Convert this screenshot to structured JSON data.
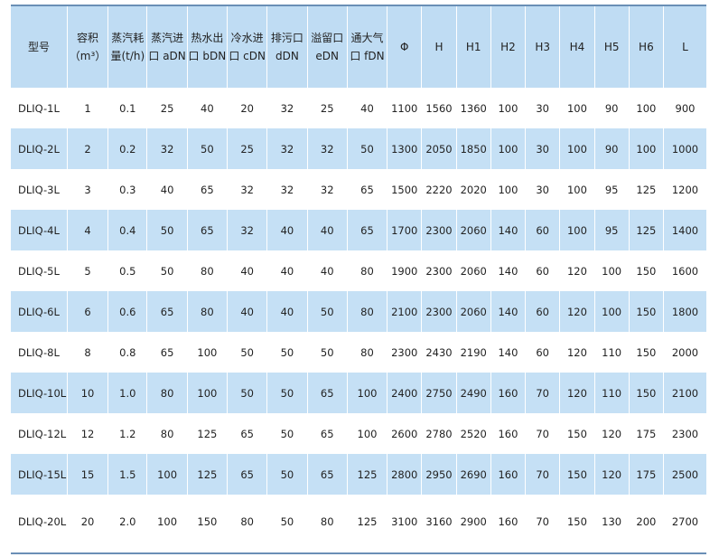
{
  "headers": [
    [
      "型号",
      ""
    ],
    [
      "容积",
      "（m³）"
    ],
    [
      "蒸汽耗",
      "量(t/h)"
    ],
    [
      "蒸汽进",
      "口 aDN"
    ],
    [
      "热水出",
      "口 bDN"
    ],
    [
      "冷水进",
      "口 cDN"
    ],
    [
      "排污口",
      "dDN"
    ],
    [
      "溢留口",
      "eDN"
    ],
    [
      "通大气",
      "口 fDN"
    ],
    [
      "Φ",
      ""
    ],
    [
      "H",
      ""
    ],
    [
      "H1",
      ""
    ],
    [
      "H2",
      ""
    ],
    [
      "H3",
      ""
    ],
    [
      "H4",
      ""
    ],
    [
      "H5",
      ""
    ],
    [
      "H6",
      ""
    ],
    [
      "L",
      ""
    ]
  ],
  "rows": [
    [
      "DLIQ-1L",
      "1",
      "0.1",
      "25",
      "40",
      "20",
      "32",
      "25",
      "40",
      "1100",
      "1560",
      "1360",
      "100",
      "30",
      "100",
      "90",
      "100",
      "900"
    ],
    [
      "DLIQ-2L",
      "2",
      "0.2",
      "32",
      "50",
      "25",
      "32",
      "32",
      "50",
      "1300",
      "2050",
      "1850",
      "100",
      "30",
      "100",
      "90",
      "100",
      "1000"
    ],
    [
      "DLIQ-3L",
      "3",
      "0.3",
      "40",
      "65",
      "32",
      "32",
      "32",
      "65",
      "1500",
      "2220",
      "2020",
      "100",
      "30",
      "100",
      "95",
      "125",
      "1200"
    ],
    [
      "DLIQ-4L",
      "4",
      "0.4",
      "50",
      "65",
      "32",
      "40",
      "40",
      "65",
      "1700",
      "2300",
      "2060",
      "140",
      "60",
      "100",
      "95",
      "125",
      "1400"
    ],
    [
      "DLIQ-5L",
      "5",
      "0.5",
      "50",
      "80",
      "40",
      "40",
      "40",
      "80",
      "1900",
      "2300",
      "2060",
      "140",
      "60",
      "120",
      "100",
      "150",
      "1600"
    ],
    [
      "DLIQ-6L",
      "6",
      "0.6",
      "65",
      "80",
      "40",
      "40",
      "50",
      "80",
      "2100",
      "2300",
      "2060",
      "140",
      "60",
      "120",
      "100",
      "150",
      "1800"
    ],
    [
      "DLIQ-8L",
      "8",
      "0.8",
      "65",
      "100",
      "50",
      "50",
      "50",
      "80",
      "2300",
      "2430",
      "2190",
      "140",
      "60",
      "120",
      "110",
      "150",
      "2000"
    ],
    [
      "DLIQ-10L",
      "10",
      "1.0",
      "80",
      "100",
      "50",
      "50",
      "65",
      "100",
      "2400",
      "2750",
      "2490",
      "160",
      "70",
      "120",
      "110",
      "150",
      "2100"
    ],
    [
      "DLIQ-12L",
      "12",
      "1.2",
      "80",
      "125",
      "65",
      "50",
      "65",
      "100",
      "2600",
      "2780",
      "2520",
      "160",
      "70",
      "150",
      "120",
      "175",
      "2300"
    ],
    [
      "DLIQ-15L",
      "15",
      "1.5",
      "100",
      "125",
      "65",
      "50",
      "65",
      "125",
      "2800",
      "2950",
      "2690",
      "160",
      "70",
      "150",
      "120",
      "175",
      "2500"
    ],
    [
      "DLIQ-20L",
      "20",
      "2.0",
      "100",
      "150",
      "80",
      "50",
      "80",
      "125",
      "3100",
      "3160",
      "2900",
      "160",
      "70",
      "150",
      "130",
      "200",
      "2700"
    ]
  ],
  "colors": {
    "header_bg": "#bfdcf3",
    "stripe_bg": "#c5e0f5",
    "rule": "#6a8fb6"
  }
}
